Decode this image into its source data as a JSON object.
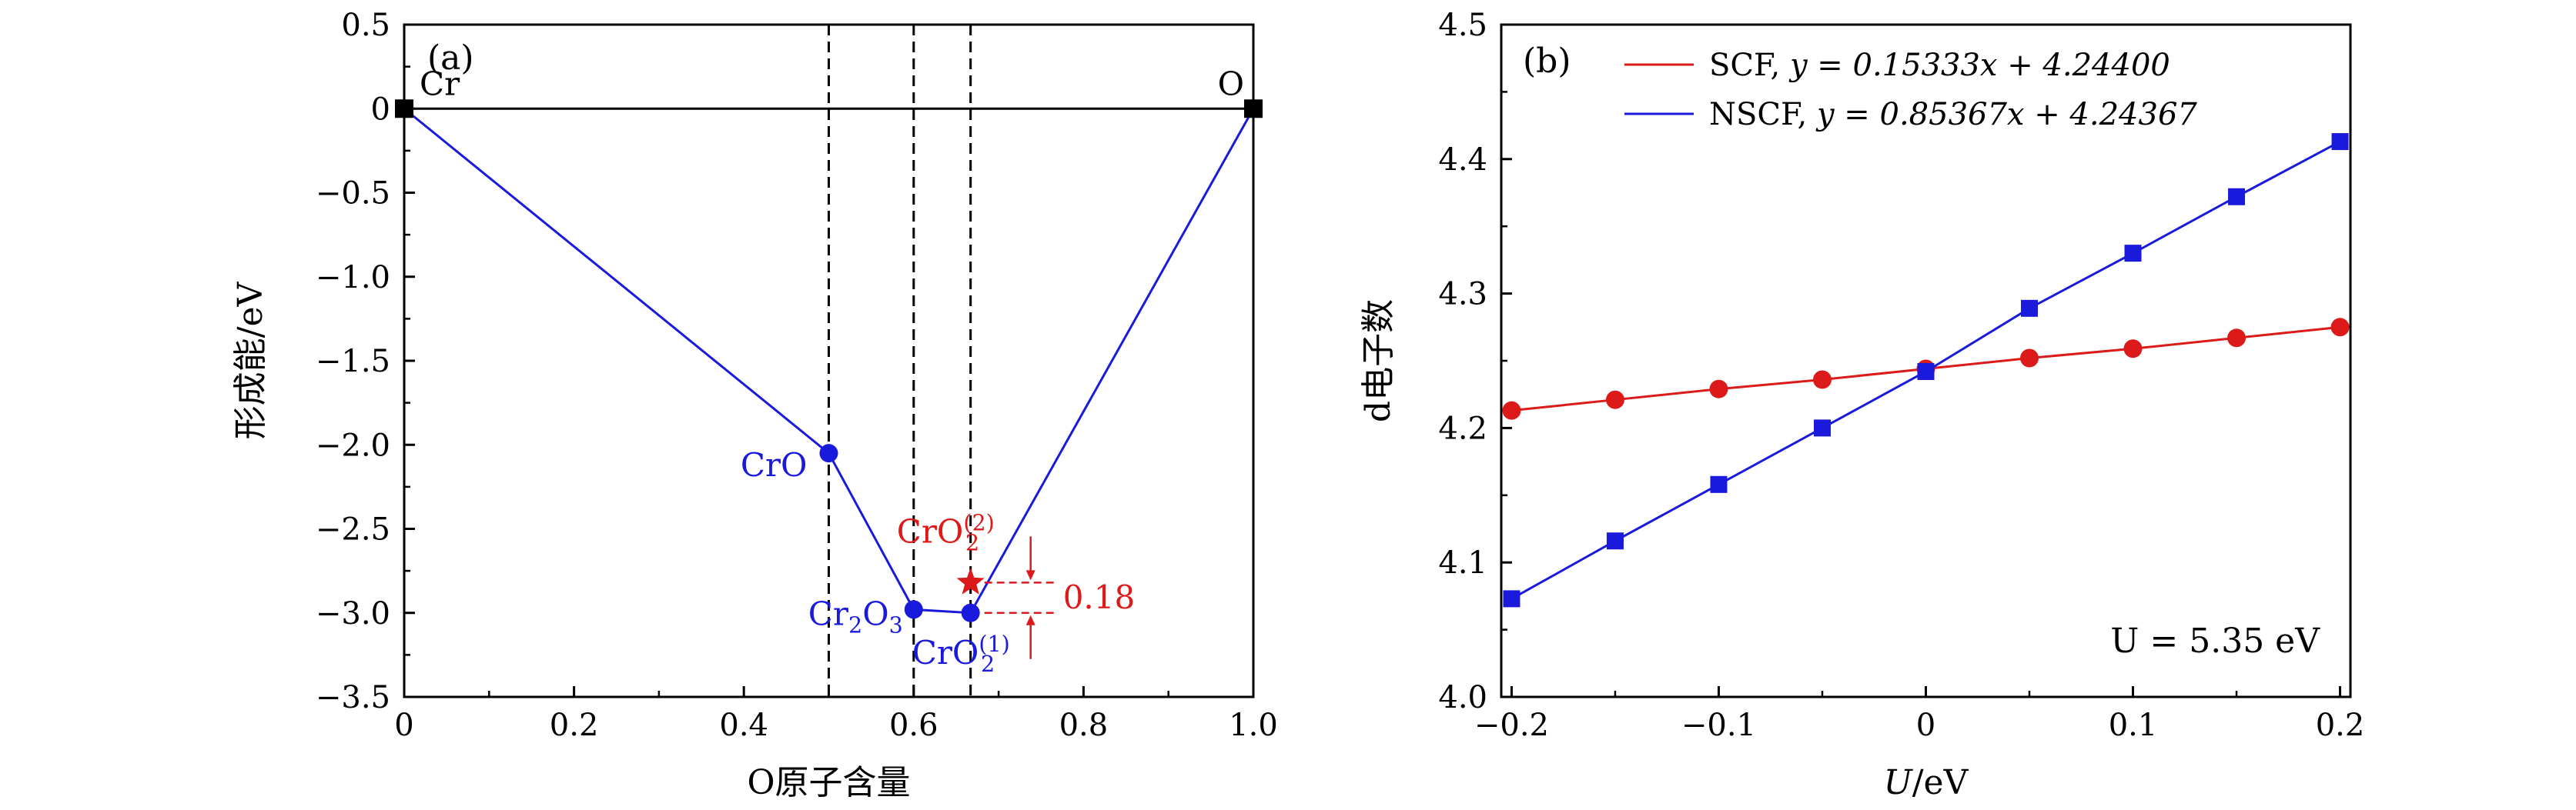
{
  "colors": {
    "blue": "#1a1adc",
    "red": "#dc1a1a",
    "black": "#000000"
  },
  "chart_data": [
    {
      "panel_label": "(a)",
      "type": "line",
      "xlabel": "O原子含量",
      "ylabel": "形成能/eV",
      "xlim": [
        0,
        1.0
      ],
      "ylim": [
        -3.5,
        0.5
      ],
      "xticks": [
        "0",
        "0.2",
        "0.4",
        "0.6",
        "0.8",
        "1.0"
      ],
      "yticks": [
        "0.5",
        "0",
        "−0.5",
        "−1.0",
        "−1.5",
        "−2.0",
        "−2.5",
        "−3.0",
        "−3.5"
      ],
      "grid": false,
      "hull": [
        {
          "x": 0,
          "y": 0
        },
        {
          "x": 0.5,
          "y": -2.05
        },
        {
          "x": 0.6,
          "y": -2.98
        },
        {
          "x": 0.667,
          "y": -3.0
        },
        {
          "x": 1.0,
          "y": 0
        }
      ],
      "endpoints": [
        {
          "x": 0,
          "y": 0,
          "label": "Cr"
        },
        {
          "x": 1.0,
          "y": 0,
          "label": "O"
        }
      ],
      "compounds": [
        {
          "x": 0.5,
          "y": -2.05,
          "label": "CrO"
        },
        {
          "x": 0.6,
          "y": -2.98,
          "label": "Cr",
          "sub": "2",
          "tail": "O",
          "sub2": "3"
        },
        {
          "x": 0.667,
          "y": -3.0,
          "label": "CrO",
          "sub": "2",
          "sup": "(1)"
        }
      ],
      "star_point": {
        "x": 0.667,
        "y": -2.82,
        "label": "CrO",
        "sub": "2",
        "sup": "(2)"
      },
      "vlines": [
        0.5,
        0.6,
        0.667
      ],
      "hline": 0,
      "annotation": "0.18"
    },
    {
      "panel_label": "(b)",
      "type": "line",
      "xlabel_italic": "U",
      "xlabel_rest": "/eV",
      "ylabel": "d电子数",
      "xlim": [
        -0.205,
        0.205
      ],
      "ylim": [
        4.0,
        4.5
      ],
      "xticks": [
        "−0.2",
        "−0.1",
        "0",
        "0.1",
        "0.2"
      ],
      "yticks": [
        "4.5",
        "4.4",
        "4.3",
        "4.2",
        "4.1",
        "4.0"
      ],
      "grid": false,
      "legend_position": "top-left",
      "x": [
        -0.2,
        -0.15,
        -0.1,
        -0.05,
        0,
        0.05,
        0.1,
        0.15,
        0.2
      ],
      "series": [
        {
          "name": "SCF",
          "equation": "y = 0.15333x + 4.24400",
          "values": [
            4.213,
            4.221,
            4.229,
            4.236,
            4.244,
            4.252,
            4.259,
            4.267,
            4.275
          ],
          "marker": "circle",
          "color": "#dc1a1a"
        },
        {
          "name": "NSCF",
          "equation": "y = 0.85367x + 4.24367",
          "values": [
            4.073,
            4.116,
            4.158,
            4.2,
            4.242,
            4.289,
            4.33,
            4.372,
            4.413
          ],
          "marker": "square",
          "color": "#1a1adc"
        }
      ],
      "annotation": "U = 5.35 eV"
    }
  ]
}
